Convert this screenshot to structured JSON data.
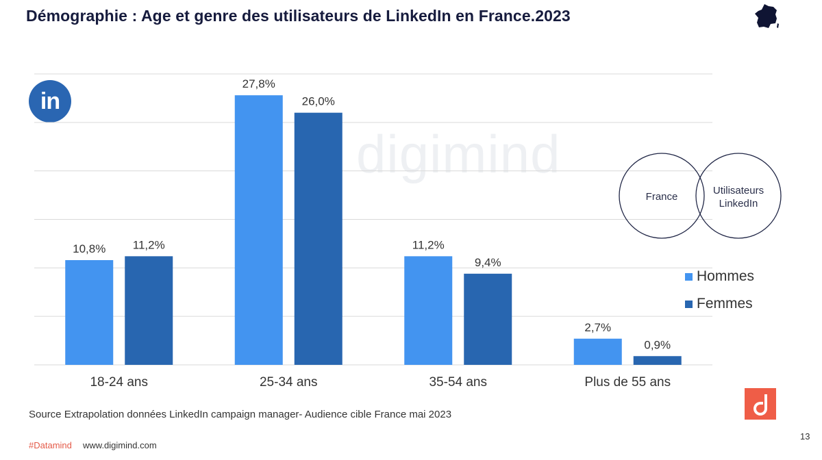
{
  "header": {
    "title": "Démographie : Age et genre des utilisateurs de LinkedIn en France.2023"
  },
  "icons": {
    "france_map": "france-map-icon",
    "linkedin": "linkedin-logo-icon",
    "linkedin_text": "in",
    "digimind_logo": "digimind-logo-icon"
  },
  "watermark": "digimind",
  "venn": {
    "left_label": "France",
    "right_label_line1": "Utilisateurs",
    "right_label_line2": "LinkedIn"
  },
  "legend": {
    "items": [
      {
        "label": "Hommes",
        "color": "#4394f0"
      },
      {
        "label": "Femmes",
        "color": "#2866b0"
      }
    ]
  },
  "chart_data": {
    "type": "bar",
    "categories": [
      "18-24 ans",
      "25-34 ans",
      "35-54 ans",
      "Plus de 55 ans"
    ],
    "series": [
      {
        "name": "Hommes",
        "values": [
          10.8,
          27.8,
          11.2,
          2.7
        ],
        "labels": [
          "10,8%",
          "27,8%",
          "11,2%",
          "2,7%"
        ],
        "color": "#4394f0"
      },
      {
        "name": "Femmes",
        "values": [
          11.2,
          26.0,
          9.4,
          0.9
        ],
        "labels": [
          "11,2%",
          "26,0%",
          "9,4%",
          "0,9%"
        ],
        "color": "#2866b0"
      }
    ],
    "ylim": [
      0,
      30
    ],
    "grid": true,
    "legend_position": "right",
    "title": "",
    "xlabel": "",
    "ylabel": ""
  },
  "source": "Source Extrapolation données LinkedIn campaign manager- Audience cible France mai 2023",
  "footer": {
    "tag": "#Datamind",
    "url": "www.digimind.com",
    "page": "13"
  }
}
